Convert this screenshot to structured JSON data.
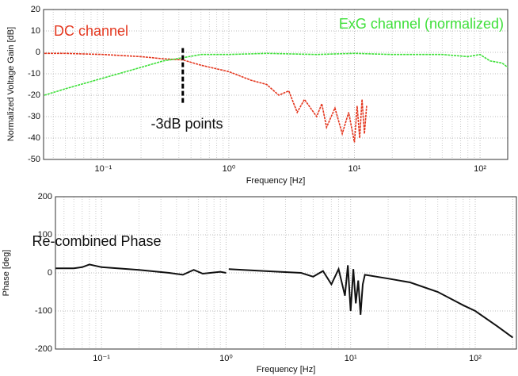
{
  "chart_data": [
    {
      "type": "line",
      "xlabel": "Frequency [Hz]",
      "ylabel": "Normalized Voltage Gain [dB]",
      "log_x": true,
      "grid": true,
      "xlim": [
        0.0335,
        166
      ],
      "xticks": [
        {
          "value": 0.1,
          "label": "10⁻¹"
        },
        {
          "value": 1,
          "label": "10⁰"
        },
        {
          "value": 10,
          "label": "10¹"
        },
        {
          "value": 100,
          "label": "10²"
        }
      ],
      "ylim": [
        -50,
        20
      ],
      "yticks": [
        -50,
        -40,
        -30,
        -20,
        -10,
        0,
        10,
        20
      ],
      "annotations": [
        "-3dB points"
      ],
      "vline": {
        "x": 0.43,
        "y": [
          2,
          -24
        ]
      },
      "series": [
        {
          "name": "DC channel",
          "color": "#e4371f",
          "x": [
            0.034,
            0.05,
            0.1,
            0.2,
            0.3,
            0.43,
            0.6,
            1,
            1.5,
            2,
            2.5,
            3,
            3.5,
            4,
            5,
            5.5,
            6,
            7,
            8,
            9,
            10,
            10.5,
            11,
            11.5,
            12,
            12.5
          ],
          "values": [
            -0.5,
            -0.5,
            -1,
            -2,
            -3,
            -3.5,
            -6,
            -9,
            -13,
            -15,
            -20,
            -18,
            -28,
            -22,
            -30,
            -24,
            -35,
            -26,
            -38,
            -28,
            -42,
            -25,
            -40,
            -22,
            -38,
            -25
          ]
        },
        {
          "name": "ExG channel (normalized)",
          "color": "#3fe03a",
          "x": [
            0.034,
            0.05,
            0.1,
            0.2,
            0.3,
            0.43,
            0.6,
            1,
            2,
            5,
            10,
            20,
            50,
            80,
            100,
            120,
            150,
            166
          ],
          "values": [
            -20,
            -17,
            -12,
            -7,
            -4,
            -2.5,
            -1,
            -1,
            -0.5,
            -1,
            -0.5,
            -1,
            -1,
            -2,
            -1,
            -4,
            -5,
            -7
          ]
        }
      ]
    },
    {
      "type": "line",
      "xlabel": "Frequency [Hz]",
      "ylabel": "Phase [deg]",
      "log_x": true,
      "grid": true,
      "xlim": [
        0.0427,
        214
      ],
      "xticks": [
        {
          "value": 0.1,
          "label": "10⁻¹"
        },
        {
          "value": 1,
          "label": "10⁰"
        },
        {
          "value": 10,
          "label": "10¹"
        },
        {
          "value": 100,
          "label": "10²"
        }
      ],
      "ylim": [
        -200,
        200
      ],
      "yticks": [
        -200,
        -100,
        0,
        100,
        200
      ],
      "annotations": [
        "Re-combined Phase"
      ],
      "series": [
        {
          "color": "#111111",
          "x": [
            0.043,
            0.06,
            0.07,
            0.08,
            0.1,
            0.2,
            0.35,
            0.45,
            0.55,
            0.65,
            0.9,
            1.0,
            1.02,
            1.05,
            2,
            4,
            5,
            6,
            7,
            8,
            9,
            9.5,
            10,
            10.5,
            11,
            11.5,
            12,
            12.5,
            13,
            20,
            30,
            50,
            80,
            100,
            150,
            200
          ],
          "values": [
            12,
            12,
            15,
            22,
            15,
            8,
            0,
            -5,
            8,
            -2,
            3,
            0,
            null,
            10,
            5,
            0,
            -10,
            5,
            -30,
            10,
            -60,
            20,
            -100,
            10,
            -80,
            -20,
            -110,
            -30,
            -5,
            -15,
            -25,
            -50,
            -85,
            -100,
            -140,
            -170
          ]
        }
      ]
    }
  ]
}
